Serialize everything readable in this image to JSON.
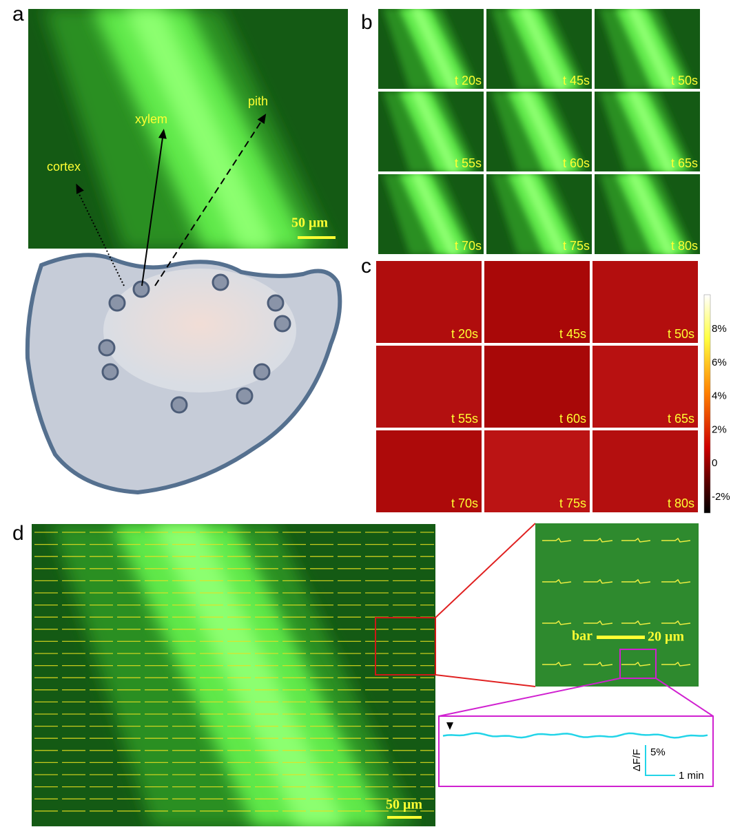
{
  "panel_labels": [
    "a",
    "b",
    "c",
    "d"
  ],
  "panel_a": {
    "labels": [
      "cortex",
      "xylem",
      "pith"
    ],
    "scale_bar": "50 μm"
  },
  "frames": [
    "t 20s",
    "t 45s",
    "t 50s",
    "t 55s",
    "t 60s",
    "t 65s",
    "t 70s",
    "t 75s",
    "t 80s"
  ],
  "colorbar": [
    "8%",
    "6%",
    "4%",
    "2%",
    "0",
    "-2%"
  ],
  "panel_d": {
    "scale_bar": "50 μm",
    "inset_bar_label": "bar",
    "inset_scale": "20 μm",
    "trace_ylabel": "ΔF/F",
    "trace_yscale": "5%",
    "trace_xscale": "1 min"
  }
}
